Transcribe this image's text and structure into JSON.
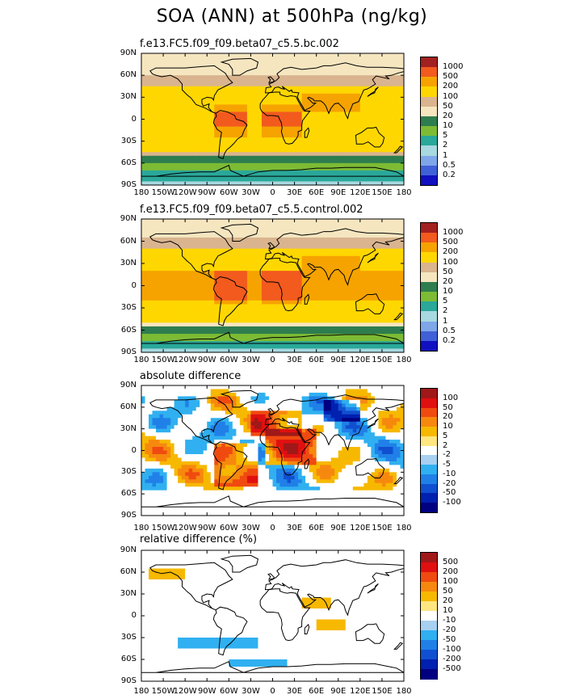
{
  "title": "SOA (ANN) at 500hPa (ng/kg)",
  "lat_labels": [
    "90N",
    "60N",
    "30N",
    "0",
    "30S",
    "60S",
    "90S"
  ],
  "lon_labels": [
    "180",
    "150W",
    "120W",
    "90W",
    "60W",
    "30W",
    "0",
    "30E",
    "60E",
    "90E",
    "120E",
    "150E",
    "180"
  ],
  "panels": [
    {
      "title": "f.e13.FC5.f09_f09.beta07_c5.5.bc.002",
      "colorbar": {
        "labels": [
          "1000",
          "500",
          "200",
          "100",
          "50",
          "20",
          "10",
          "5",
          "2",
          "1",
          "0.5",
          "0.2"
        ],
        "colors": [
          "#a32020",
          "#f25a1e",
          "#f6a300",
          "#ffd700",
          "#d9b48f",
          "#f5e6c0",
          "#2e7d4f",
          "#7dbb35",
          "#2aa89a",
          "#a8d8e0",
          "#7ea6e8",
          "#4060d8",
          "#1010c0"
        ]
      }
    },
    {
      "title": "f.e13.FC5.f09_f09.beta07_c5.5.control.002",
      "colorbar": {
        "labels": [
          "1000",
          "500",
          "200",
          "100",
          "50",
          "20",
          "10",
          "5",
          "2",
          "1",
          "0.5",
          "0.2"
        ],
        "colors": [
          "#a32020",
          "#f25a1e",
          "#f6a300",
          "#ffd700",
          "#d9b48f",
          "#f5e6c0",
          "#2e7d4f",
          "#7dbb35",
          "#2aa89a",
          "#a8d8e0",
          "#7ea6e8",
          "#4060d8",
          "#1010c0"
        ]
      }
    },
    {
      "title": "absolute difference",
      "colorbar": {
        "labels": [
          "100",
          "50",
          "20",
          "10",
          "5",
          "2",
          "-2",
          "-5",
          "-10",
          "-20",
          "-50",
          "-100"
        ],
        "colors": [
          "#a01818",
          "#e01010",
          "#f04a10",
          "#f7880e",
          "#f7b800",
          "#ffe680",
          "#ffffff",
          "#a8d0f0",
          "#30b0f0",
          "#2080e8",
          "#1050d0",
          "#0020b0",
          "#000080"
        ]
      }
    },
    {
      "title": "relative difference (%)",
      "colorbar": {
        "labels": [
          "500",
          "200",
          "100",
          "50",
          "20",
          "10",
          "-10",
          "-20",
          "-50",
          "-100",
          "-200",
          "-500"
        ],
        "colors": [
          "#a01818",
          "#e01010",
          "#f04a10",
          "#f7880e",
          "#f7b800",
          "#ffe680",
          "#ffffff",
          "#a8d0f0",
          "#30b0f0",
          "#2080e8",
          "#1050d0",
          "#0020b0",
          "#000080"
        ]
      }
    }
  ]
}
